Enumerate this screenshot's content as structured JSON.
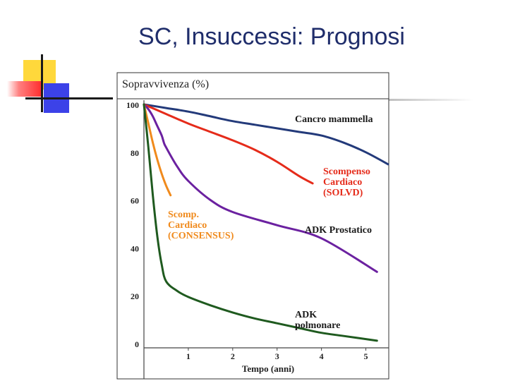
{
  "slide": {
    "title": "SC, Insuccessi: Prognosi"
  },
  "chart_data": {
    "type": "line",
    "ylabel": "Sopravvivenza (%)",
    "xlabel": "Tempo (anni)",
    "xlim": [
      0,
      5.5
    ],
    "ylim": [
      0,
      100
    ],
    "x_ticks": [
      "1",
      "2",
      "3",
      "4",
      "5"
    ],
    "y_ticks": [
      "100",
      "80",
      "60",
      "40",
      "20",
      "0"
    ],
    "series": [
      {
        "name": "Cancro mammella",
        "color": "#233a7a",
        "label_lines": [
          "Cancro mammella"
        ],
        "x": [
          0,
          0.5,
          1,
          1.5,
          2,
          2.5,
          3,
          3.5,
          4,
          4.5,
          5,
          5.5
        ],
        "y": [
          100,
          98.5,
          97,
          95,
          93,
          91.5,
          90,
          88.5,
          87,
          84,
          80,
          75
        ]
      },
      {
        "name": "Scompenso Cardiaco (SOLVD)",
        "color": "#e52b1a",
        "label_lines": [
          "Scompenso",
          "Cardiaco",
          "(SOLVD)"
        ],
        "x": [
          0,
          0.25,
          0.5,
          1,
          1.5,
          2,
          2.5,
          3,
          3.5,
          3.8
        ],
        "y": [
          100,
          98,
          96,
          92,
          88.5,
          85,
          81,
          76,
          70,
          67
        ]
      },
      {
        "name": "ADK Prostatico",
        "color": "#6b21a0",
        "label_lines": [
          "ADK Prostatico"
        ],
        "x": [
          0,
          0.1,
          0.2,
          0.3,
          0.4,
          0.45,
          0.5,
          0.75,
          1,
          1.5,
          2,
          3,
          4,
          5.25
        ],
        "y": [
          100,
          98,
          95,
          91,
          87,
          84,
          82,
          74,
          68,
          60,
          55,
          49.5,
          44,
          30
        ]
      },
      {
        "name": "Scomp. Cardiaco (CONSENSUS)",
        "color": "#f08a1c",
        "label_lines": [
          "Scomp.",
          "Cardiaco",
          "(CONSENSUS)"
        ],
        "x": [
          0,
          0.1,
          0.2,
          0.3,
          0.4,
          0.5,
          0.6
        ],
        "y": [
          100,
          92,
          84,
          77,
          71,
          66,
          62
        ]
      },
      {
        "name": "ADK polmonare",
        "color": "#1f5a1f",
        "label_lines": [
          "ADK",
          "polmonare"
        ],
        "x": [
          0,
          0.1,
          0.2,
          0.3,
          0.4,
          0.5,
          0.75,
          1,
          1.5,
          2,
          2.5,
          3,
          3.5,
          4,
          4.5,
          5.25
        ],
        "y": [
          100,
          82,
          62,
          45,
          33,
          26,
          22,
          19.5,
          16,
          13,
          10.5,
          8.5,
          6.5,
          4.5,
          3.2,
          1.2
        ]
      }
    ]
  }
}
